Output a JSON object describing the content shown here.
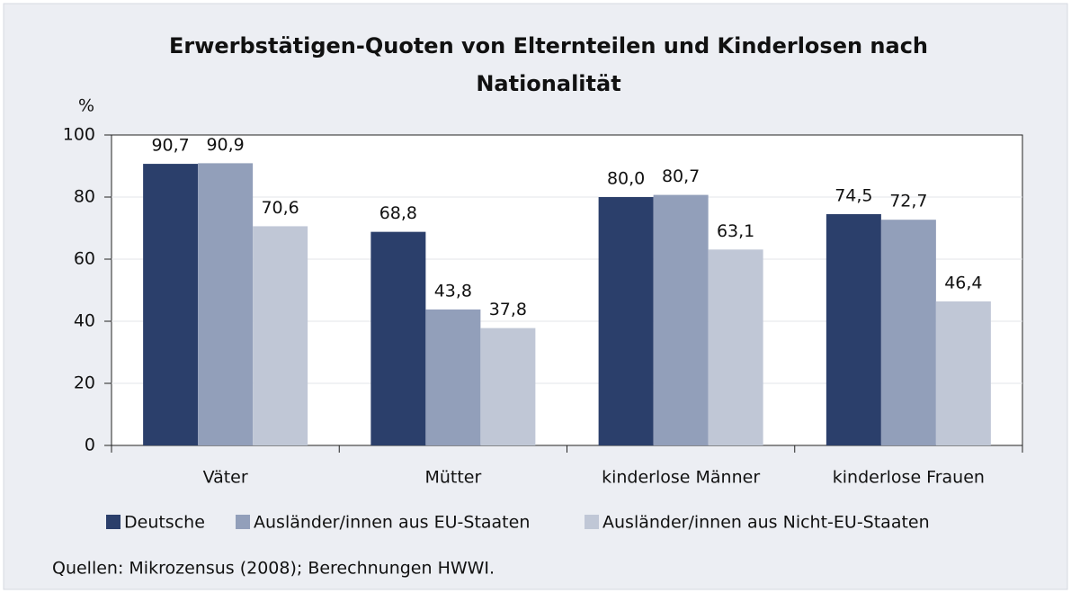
{
  "chart_data": {
    "type": "bar",
    "title": [
      "Erwerbstätigen-Quoten von Elternteilen und Kinderlosen nach",
      "Nationalität"
    ],
    "y_label": "%",
    "categories": [
      "Väter",
      "Mütter",
      "kinderlose Männer",
      "kinderlose Frauen"
    ],
    "series": [
      {
        "name": "Deutsche",
        "color": "#2b3f6b",
        "values": [
          90.7,
          68.8,
          80.0,
          74.5
        ],
        "value_labels": [
          "90,7",
          "68,8",
          "80,0",
          "74,5"
        ]
      },
      {
        "name": "Ausländer/innen aus EU-Staaten",
        "color": "#929fba",
        "values": [
          90.9,
          43.8,
          80.7,
          72.7
        ],
        "value_labels": [
          "90,9",
          "43,8",
          "80,7",
          "72,7"
        ]
      },
      {
        "name": "Ausländer/innen aus Nicht-EU-Staaten",
        "color": "#c0c7d6",
        "values": [
          70.6,
          37.8,
          63.1,
          46.4
        ],
        "value_labels": [
          "70,6",
          "37,8",
          "63,1",
          "46,4"
        ]
      }
    ],
    "ylim": [
      0,
      100
    ],
    "yticks": [
      0,
      20,
      40,
      60,
      80,
      100
    ],
    "grid": true,
    "source": "Quellen: Mikrozensus (2008); Berechnungen HWWI."
  }
}
